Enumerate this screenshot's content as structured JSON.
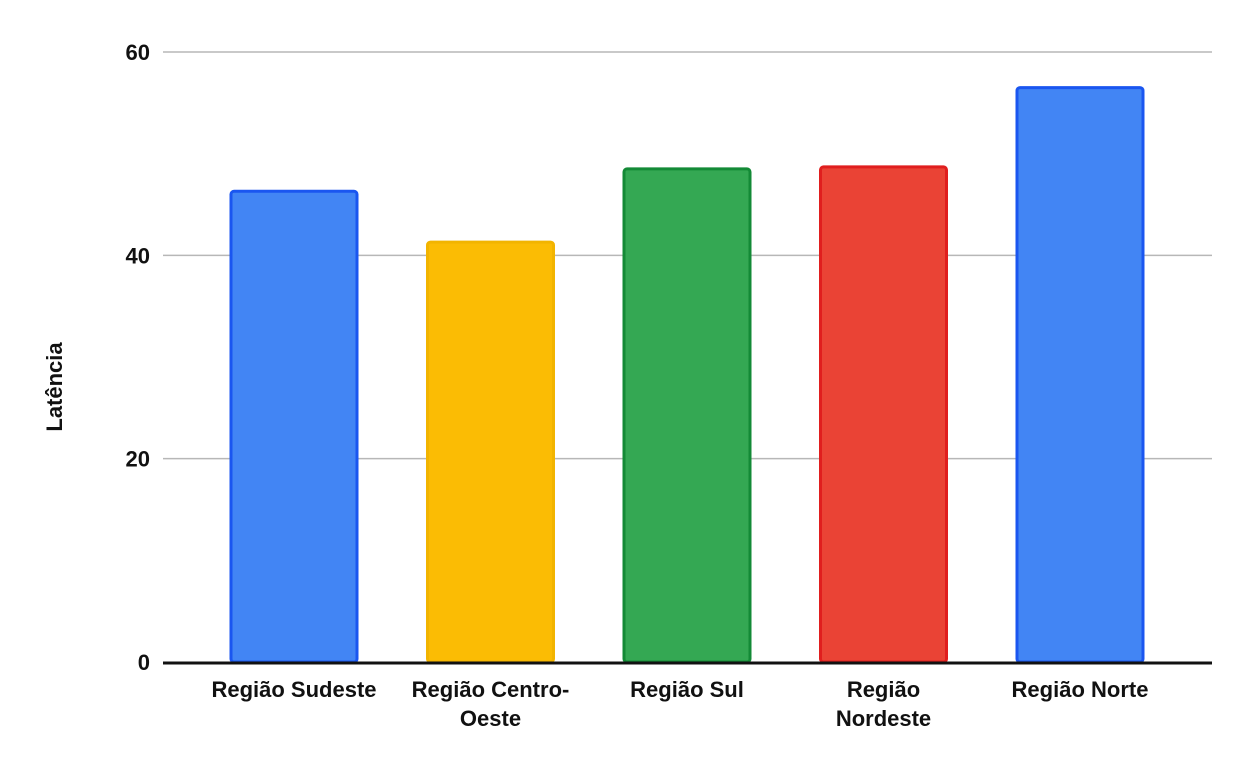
{
  "chart_data": {
    "type": "bar",
    "title": "",
    "xlabel": "",
    "ylabel": "Latência",
    "ylim": [
      0,
      60
    ],
    "yticks": [
      0,
      20,
      40,
      60
    ],
    "grid": true,
    "legend": "none",
    "categories": [
      "Região Sudeste",
      "Região Centro-Oeste",
      "Região Sul",
      "Região Nordeste",
      "Região Norte"
    ],
    "category_label_lines": [
      [
        "Região Sudeste"
      ],
      [
        "Região Centro-",
        "Oeste"
      ],
      [
        "Região Sul"
      ],
      [
        "Região",
        "Nordeste"
      ],
      [
        "Região Norte"
      ]
    ],
    "values": [
      46.3,
      41.3,
      48.5,
      48.7,
      56.5
    ],
    "colors": [
      "#4285F4",
      "#FBBC04",
      "#34A853",
      "#EA4335",
      "#4285F4"
    ],
    "outline_colors": [
      "#1a56f0",
      "#f2b400",
      "#138a36",
      "#e01e1e",
      "#1a56f0"
    ],
    "gridline_color": "#b7b7b7",
    "axis_color": "#111111"
  }
}
